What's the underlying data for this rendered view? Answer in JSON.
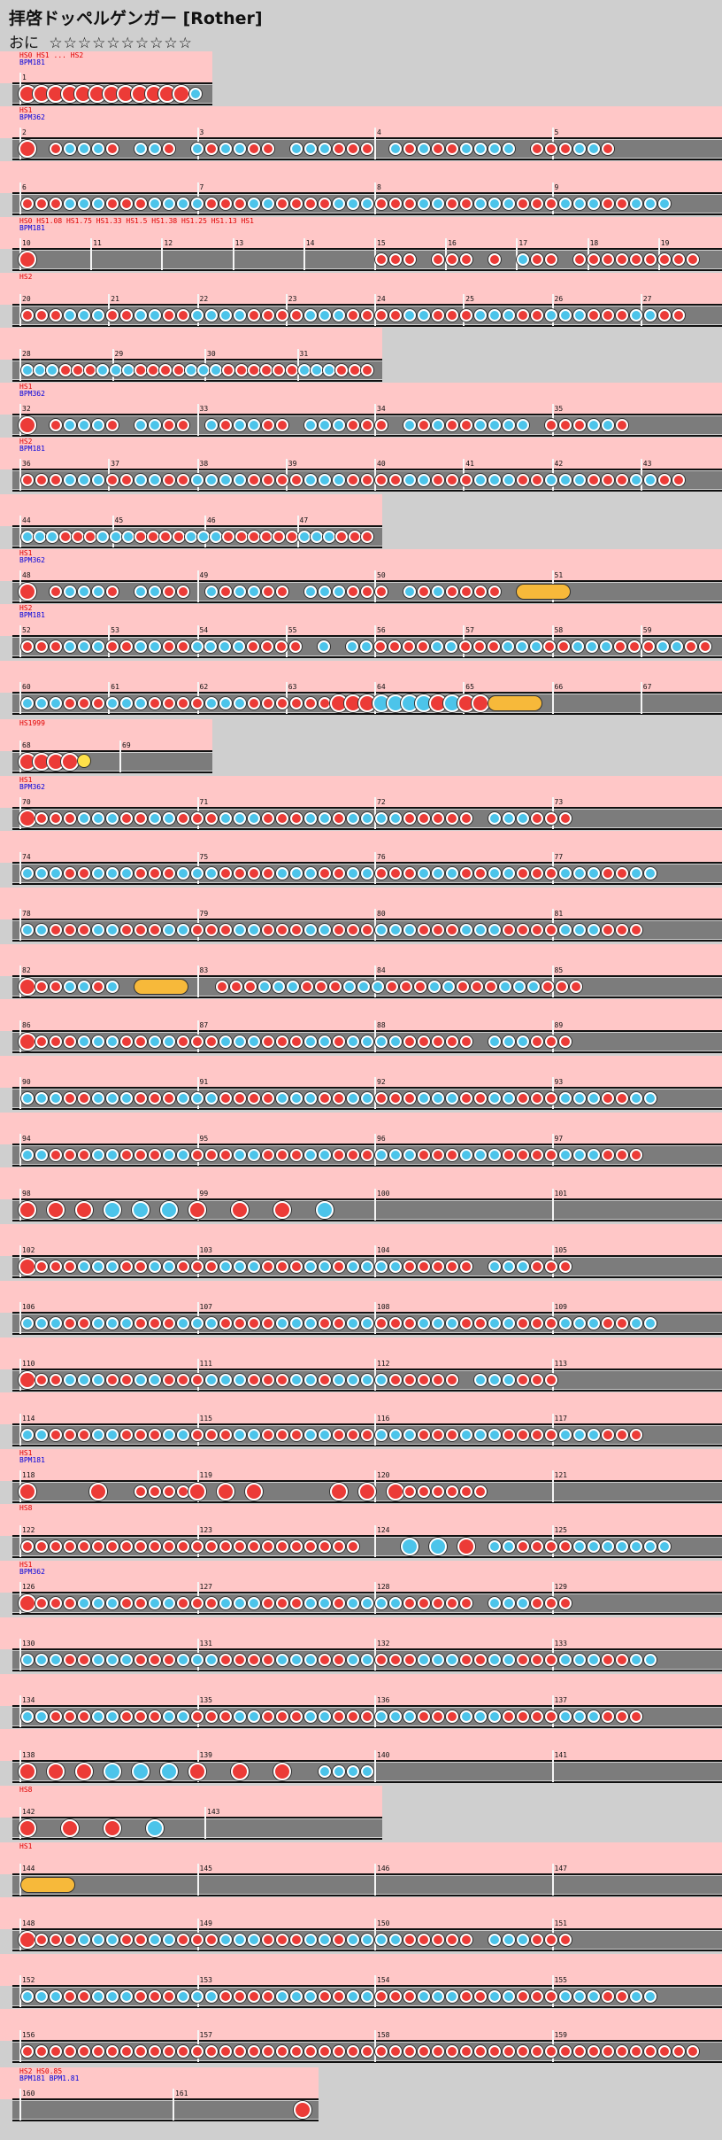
{
  "song": {
    "title": "拝啓ドッペルゲンガー [Rother]"
  },
  "course": {
    "name": "おに",
    "stars": "☆☆☆☆☆☆☆☆☆☆"
  },
  "colors": {
    "don": "#ec3b37",
    "ka": "#4cc4ea",
    "roll": "#f7b93a",
    "lane": "#7c7c7c",
    "row_bg": "#ffc7c7",
    "page_bg": "#cfcfcf"
  },
  "rows": [
    {
      "w": 240,
      "hs": "HS0 HS1 ... HS2",
      "bpm": "BPM181",
      "bars": [
        "1"
      ],
      "pattern": "DDDDDDDDDDDDk"
    },
    {
      "w": 816,
      "hs": "HS1",
      "bpm": "BPM362",
      "bars": [
        "2",
        "3",
        "4",
        "5"
      ],
      "pattern": "D_dkkkd_kkd_kdkkdd_kkkddd_kdkddkkkk_dddkkd"
    },
    {
      "w": 816,
      "bars": [
        "6",
        "7",
        "8",
        "9"
      ],
      "pattern": "dddkkkdddkkkkdddkkddddkkkdddkkddkkkdddkkkddkkk"
    },
    {
      "w": 816,
      "hs": "HS0 HS1.08 HS1.75 HS1.33 HS1.5 HS1.38 HS1.25 HS1.13 HS1",
      "bpm": "BPM181",
      "bars": [
        "10",
        "11",
        "12",
        "13",
        "14",
        "15",
        "16",
        "17",
        "18",
        "19"
      ],
      "pattern": "D________________________ddd_ddd_d_kdd_ddddddddd"
    },
    {
      "w": 816,
      "hs": "HS2",
      "bars": [
        "20",
        "21",
        "22",
        "23",
        "24",
        "25",
        "26",
        "27"
      ],
      "pattern": "dddkkkddkkddkkkkddddkkkddddkkdddkkkddkkkdddkkdd"
    },
    {
      "w": 432,
      "bars": [
        "28",
        "29",
        "30",
        "31"
      ],
      "pattern": "kkkdddkkkddddkkkddddddkkkddd"
    },
    {
      "w": 816,
      "hs": "HS1",
      "bpm": "BPM362",
      "bars": [
        "32",
        "33",
        "34",
        "35"
      ],
      "pattern": "D_dkkkd_kkdd_kdkkdd_kkkddd_kdkddkkkk_dddkkd"
    },
    {
      "w": 816,
      "hs": "HS2",
      "bpm": "BPM181",
      "bars": [
        "36",
        "37",
        "38",
        "39",
        "40",
        "41",
        "42",
        "43"
      ],
      "pattern": "dddkkkddkkddkkkkddddkkkddddkkdddkkkddkkkdddkkdd"
    },
    {
      "w": 432,
      "bars": [
        "44",
        "45",
        "46",
        "47"
      ],
      "pattern": "kkkdddkkkddddkkkddddddkkkddd"
    },
    {
      "w": 816,
      "hs": "HS1",
      "bpm": "BPM362",
      "bars": [
        "48",
        "49",
        "50",
        "51"
      ],
      "pattern": "D_dkkkd_kkdd_kdkkdd_kkkddd_kdkdddd_R"
    },
    {
      "w": 816,
      "hs": "HS2",
      "bpm": "BPM181",
      "bars": [
        "52",
        "53",
        "54",
        "55",
        "56",
        "57",
        "58",
        "59"
      ],
      "pattern": "dddkkkddkkddkkkkdddd_k_kkddddkkdddkkkddkkkdddkkdd"
    },
    {
      "w": 816,
      "bars": [
        "60",
        "61",
        "62",
        "63",
        "64",
        "65",
        "66",
        "67"
      ],
      "pattern": "kkkdddkkkddddkkkddddddDDDKKKKDKDDR"
    },
    {
      "w": 240,
      "hs": "HS1999",
      "bars": [
        "68",
        "69"
      ],
      "pattern": "DDDDB"
    },
    {
      "w": 816,
      "hs": "HS1",
      "bpm": "BPM362",
      "bars": [
        "70",
        "71",
        "72",
        "73"
      ],
      "pattern": "Ddddkkkddkkdddkkkdddkkdkkkkddddd_kkkddd"
    },
    {
      "w": 816,
      "bars": [
        "74",
        "75",
        "76",
        "77"
      ],
      "pattern": "kkkddkkkdddkkkddddkkkddkkdddkkkddkkdddkkkddkk"
    },
    {
      "w": 816,
      "bars": [
        "78",
        "79",
        "80",
        "81"
      ],
      "pattern": "kkdddkkdddkkdddkkdddkkdddkkkdddkkkddddkkkddd"
    },
    {
      "w": 816,
      "bars": [
        "82",
        "83",
        "84",
        "85"
      ],
      "pattern": "Dddkkdk R_dddkkkdddkkkdddkkdddkkkddd"
    },
    {
      "w": 816,
      "bars": [
        "86",
        "87",
        "88",
        "89"
      ],
      "pattern": "Ddddkkkddkkdddkkkdddkkdkkkkddddd_kkkddd"
    },
    {
      "w": 816,
      "bars": [
        "90",
        "91",
        "92",
        "93"
      ],
      "pattern": "kkkddkkkdddkkkddddkkkddkkdddkkkddkkdddkkkddkk"
    },
    {
      "w": 816,
      "bars": [
        "94",
        "95",
        "96",
        "97"
      ],
      "pattern": "kkdddkkdddkkdddkkdddkkdddkkkdddkkkddddkkkddd"
    },
    {
      "w": 816,
      "bars": [
        "98",
        "99",
        "100",
        "101"
      ],
      "pattern": "D_D_D_K_K_K_D__D__D__K"
    },
    {
      "w": 816,
      "bars": [
        "102",
        "103",
        "104",
        "105"
      ],
      "pattern": "Ddddkkkddkkdddkkkdddkkdkkkkddddd_kkkddd"
    },
    {
      "w": 816,
      "bars": [
        "106",
        "107",
        "108",
        "109"
      ],
      "pattern": "kkkddkkkdddkkkddddkkkddkkdddkkkddkkdddkkkddkk"
    },
    {
      "w": 816,
      "bars": [
        "110",
        "111",
        "112",
        "113"
      ],
      "pattern": "Dddkkkddkkdddkkkdddkkdkkkkddddd_kkkddd"
    },
    {
      "w": 816,
      "bars": [
        "114",
        "115",
        "116",
        "117"
      ],
      "pattern": "kkdddkkdddkkdddkkdddkkdddkkkdddkkkddddkkkddd"
    },
    {
      "w": 816,
      "hs": "HS1",
      "bpm": "BPM181",
      "bars": [
        "118",
        "119",
        "120",
        "121"
      ],
      "pattern": "D____D__ddddD_D_D_____D_D_Ddddddd"
    },
    {
      "w": 816,
      "hs": "HS8",
      "bars": [
        "122",
        "123",
        "124",
        "125"
      ],
      "pattern": "dddddddddddddddddddddddd___K_K_D_kkddddkkkkkkk"
    },
    {
      "w": 816,
      "hs": "HS1",
      "bpm": "BPM362",
      "bars": [
        "126",
        "127",
        "128",
        "129"
      ],
      "pattern": "Ddddkkkddkkdddkkkdddkkdkkkkddddd_kkkddd"
    },
    {
      "w": 816,
      "bars": [
        "130",
        "131",
        "132",
        "133"
      ],
      "pattern": "kkkddkkkdddkkkddddkkkddkkdddkkkddkkdddkkkddkk"
    },
    {
      "w": 816,
      "bars": [
        "134",
        "135",
        "136",
        "137"
      ],
      "pattern": "kkdddkkdddkkdddkkdddkkdddkkkdddkkkddddkkkddd"
    },
    {
      "w": 816,
      "bars": [
        "138",
        "139",
        "140",
        "141"
      ],
      "pattern": "D_D_D_K_K_K_D__D__D__kkkk"
    },
    {
      "w": 432,
      "hs": "HS8",
      "bars": [
        "142",
        "143"
      ],
      "pattern": "D__D__D__K"
    },
    {
      "w": 816,
      "hs": "HS1",
      "bars": [
        "144",
        "145",
        "146",
        "147"
      ],
      "pattern": "R"
    },
    {
      "w": 816,
      "bars": [
        "148",
        "149",
        "150",
        "151"
      ],
      "pattern": "Ddddkkkddkkdddkkkdddkkdkkkkddddd_kkkddd"
    },
    {
      "w": 816,
      "bars": [
        "152",
        "153",
        "154",
        "155"
      ],
      "pattern": "kkkddkkkdddkkkddddkkkddkkdddkkkddkkdddkkkddkk"
    },
    {
      "w": 816,
      "bars": [
        "156",
        "157",
        "158",
        "159"
      ],
      "pattern": "dddddddddddddddddddddddddddddddddddddddddddddddd"
    },
    {
      "w": 360,
      "hs": "HS2 HS0.85",
      "bpm": "BPM181 BPM1.81",
      "bars": [
        "160",
        "161"
      ],
      "pattern": "_____________________D"
    }
  ]
}
